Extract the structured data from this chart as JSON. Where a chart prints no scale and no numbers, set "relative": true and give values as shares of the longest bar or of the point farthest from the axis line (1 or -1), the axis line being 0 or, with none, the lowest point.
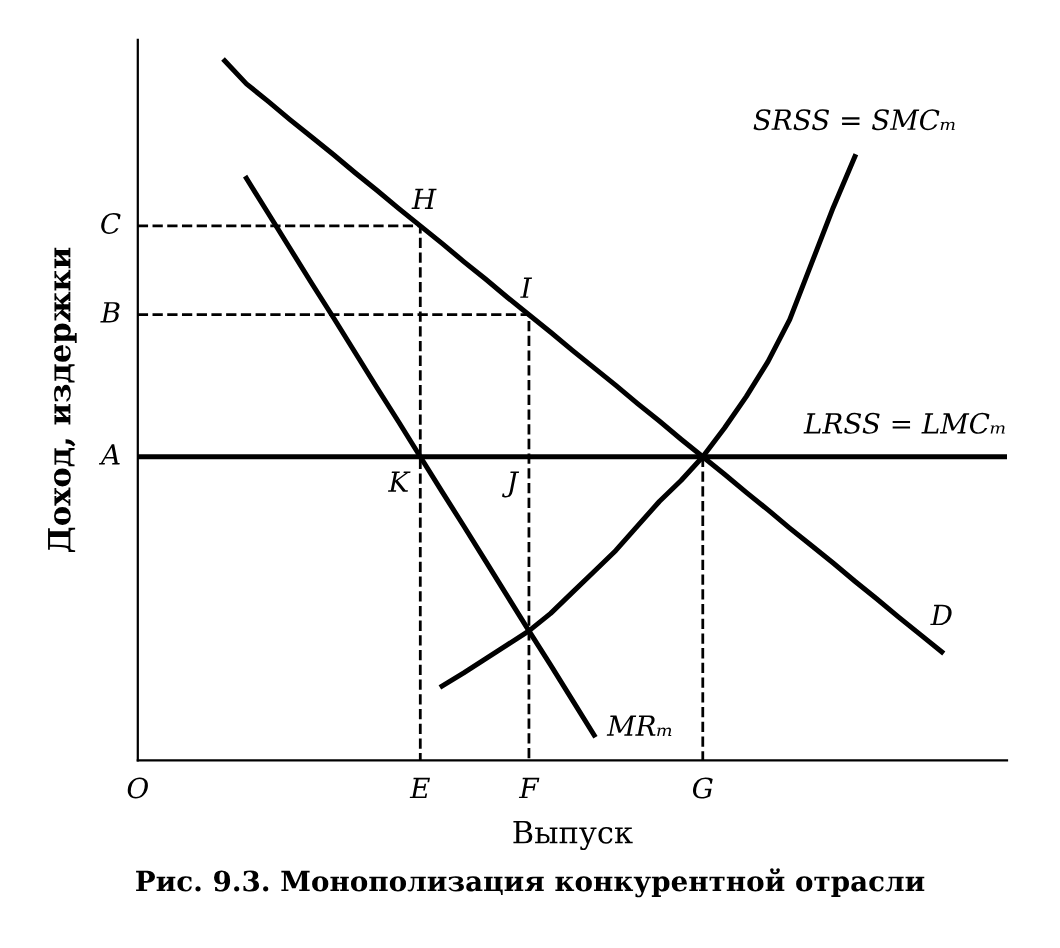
{
  "chart_data": {
    "type": "line",
    "relative": true,
    "xlabel": "Выпуск",
    "ylabel": "Доход, издержки",
    "categories": [
      "O",
      null,
      null,
      null,
      null,
      null,
      null,
      null,
      null,
      null,
      null,
      null,
      null,
      "E",
      null,
      null,
      null,
      null,
      "F",
      null,
      null,
      null,
      null,
      null,
      null,
      null,
      "G",
      null,
      null,
      null,
      null,
      null,
      null,
      null,
      null,
      null,
      null,
      null,
      null,
      null,
      null
    ],
    "series": [
      {
        "name": "D",
        "color": "#000000",
        "line_style": "solid",
        "values": [
          null,
          null,
          null,
          null,
          1.0,
          0.967,
          0.942,
          0.916,
          0.891,
          0.866,
          0.84,
          0.815,
          0.789,
          0.764,
          0.739,
          0.713,
          0.688,
          0.662,
          0.637,
          0.612,
          0.586,
          0.561,
          0.536,
          0.51,
          0.485,
          0.459,
          0.434,
          0.409,
          0.383,
          0.358,
          0.332,
          0.307,
          0.282,
          0.256,
          0.231,
          0.205,
          0.18,
          0.155,
          null,
          null,
          null
        ]
      },
      {
        "name": "MRₘ",
        "color": "#000000",
        "line_style": "solid",
        "values": [
          null,
          null,
          null,
          null,
          null,
          0.832,
          0.782,
          0.732,
          0.682,
          0.633,
          0.583,
          0.533,
          0.484,
          0.434,
          0.384,
          0.335,
          0.285,
          0.235,
          0.185,
          0.136,
          0.086,
          0.036,
          null,
          null,
          null,
          null,
          null,
          null,
          null,
          null,
          null,
          null,
          null,
          null,
          null,
          null,
          null,
          null,
          null,
          null,
          null
        ]
      },
      {
        "name": "SRSS = SMCₘ",
        "color": "#000000",
        "line_style": "solid",
        "values": [
          null,
          null,
          null,
          null,
          null,
          null,
          null,
          null,
          null,
          null,
          null,
          null,
          null,
          null,
          0.106,
          0.125,
          0.145,
          0.165,
          0.185,
          0.21,
          0.24,
          0.27,
          0.3,
          0.335,
          0.37,
          0.4,
          0.434,
          0.475,
          0.52,
          0.57,
          0.63,
          0.71,
          0.79,
          0.863,
          null,
          null,
          null,
          null,
          null,
          null,
          null
        ]
      },
      {
        "name": "LRSS = LMCₘ",
        "color": "#000000",
        "line_style": "solid",
        "values": [
          0.434,
          0.434,
          0.434,
          0.434,
          0.434,
          0.434,
          0.434,
          0.434,
          0.434,
          0.434,
          0.434,
          0.434,
          0.434,
          0.434,
          0.434,
          0.434,
          0.434,
          0.434,
          0.434,
          0.434,
          0.434,
          0.434,
          0.434,
          0.434,
          0.434,
          0.434,
          0.434,
          0.434,
          0.434,
          0.434,
          0.434,
          0.434,
          0.434,
          0.434,
          0.434,
          0.434,
          0.434,
          0.434,
          0.434,
          0.434,
          0.434
        ]
      },
      {
        "color": "#000000",
        "line_style": "dashed",
        "x": [
          "O",
          "E",
          "E"
        ],
        "values": [
          0.764,
          0.764,
          0
        ]
      },
      {
        "color": "#000000",
        "line_style": "dashed",
        "x": [
          "O",
          "F",
          "F"
        ],
        "values": [
          0.637,
          0.637,
          0
        ]
      },
      {
        "color": "#000000",
        "line_style": "dashed",
        "x": [
          "G",
          "G"
        ],
        "values": [
          0.434,
          0
        ]
      }
    ],
    "annotations": [
      {
        "text": "A",
        "x": "O",
        "y": 0.434
      },
      {
        "text": "B",
        "x": "O",
        "y": 0.637
      },
      {
        "text": "C",
        "x": "O",
        "y": 0.764
      },
      {
        "text": "H",
        "x": "E",
        "y": 0.764
      },
      {
        "text": "I",
        "x": "F",
        "y": 0.637
      },
      {
        "text": "J",
        "x": "F",
        "y": 0.434
      },
      {
        "text": "K",
        "x": "E",
        "y": 0.434
      },
      "Рис. 9.3. Монополизация конкурентной отрасли"
    ]
  }
}
